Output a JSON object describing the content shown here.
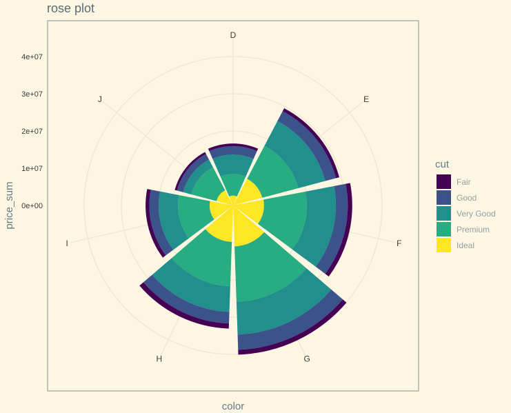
{
  "chart_data": {
    "type": "rose",
    "title": "rose plot",
    "xlabel": "color",
    "ylabel": "price_sum",
    "categories": [
      "D",
      "E",
      "F",
      "G",
      "H",
      "I",
      "J"
    ],
    "y_ticks": [
      "0e+00",
      "1e+07",
      "2e+07",
      "3e+07",
      "4e+07"
    ],
    "legend_title": "cut",
    "series": [
      {
        "name": "Fair",
        "color": "#440154",
        "values": [
          700000,
          900000,
          1200000,
          1300000,
          1400000,
          1000000,
          600000
        ]
      },
      {
        "name": "Good",
        "color": "#3b528b",
        "values": [
          2300000,
          3000000,
          3200000,
          4100000,
          3100000,
          2500000,
          1700000
        ]
      },
      {
        "name": "Very Good",
        "color": "#21908c",
        "values": [
          5200000,
          7500000,
          7800000,
          8800000,
          6900000,
          5200000,
          2300000
        ]
      },
      {
        "name": "Premium",
        "color": "#27ad81",
        "values": [
          5800000,
          10000000,
          11500000,
          14900000,
          11900000,
          8500000,
          7000000
        ]
      },
      {
        "name": "Ideal",
        "color": "#fde725",
        "values": [
          2650000,
          8100000,
          8300000,
          11000000,
          9800000,
          6300000,
          4600000
        ]
      }
    ],
    "stack_order": [
      "Ideal",
      "Premium",
      "Very Good",
      "Good",
      "Fair"
    ],
    "grid": true,
    "legend_position": "right"
  }
}
